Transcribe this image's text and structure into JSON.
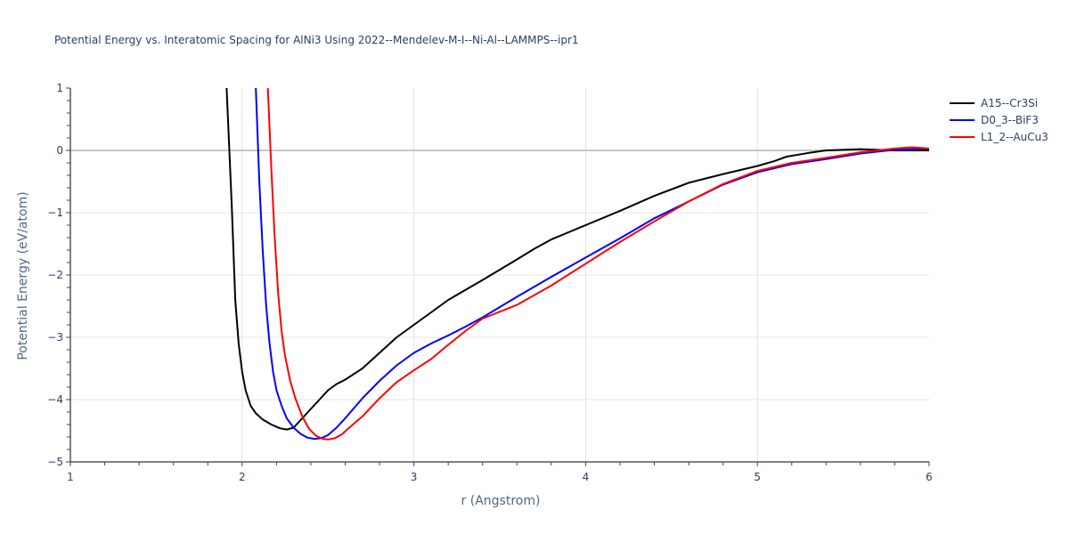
{
  "chart_data": {
    "type": "line",
    "title": "Potential Energy vs. Interatomic Spacing for AlNi3 Using 2022--Mendelev-M-I--Ni-Al--LAMMPS--ipr1",
    "xlabel": "r (Angstrom)",
    "ylabel": "Potential Energy (eV/atom)",
    "xlim": [
      1,
      6
    ],
    "ylim": [
      -5,
      1
    ],
    "x_ticks": [
      "1",
      "2",
      "3",
      "4",
      "5",
      "6"
    ],
    "y_ticks": [
      "1",
      "0",
      "−1",
      "−2",
      "−3",
      "−4",
      "−5"
    ],
    "grid": true,
    "legend_position": "top-right outside",
    "series": [
      {
        "name": "A15--Cr3Si",
        "color": "#000000",
        "x": [
          1.91,
          1.94,
          1.96,
          1.98,
          2.0,
          2.02,
          2.05,
          2.08,
          2.12,
          2.17,
          2.22,
          2.26,
          2.3,
          2.35,
          2.4,
          2.45,
          2.5,
          2.55,
          2.6,
          2.7,
          2.8,
          2.9,
          3.0,
          3.1,
          3.2,
          3.4,
          3.6,
          3.7,
          3.8,
          4.0,
          4.2,
          4.4,
          4.6,
          4.8,
          5.0,
          5.1,
          5.17,
          5.3,
          5.4,
          5.6,
          5.8,
          6.0
        ],
        "y": [
          1.0,
          -0.9,
          -2.4,
          -3.1,
          -3.55,
          -3.85,
          -4.1,
          -4.22,
          -4.32,
          -4.4,
          -4.46,
          -4.48,
          -4.45,
          -4.3,
          -4.15,
          -4.0,
          -3.85,
          -3.75,
          -3.68,
          -3.5,
          -3.25,
          -3.0,
          -2.8,
          -2.6,
          -2.4,
          -2.08,
          -1.75,
          -1.58,
          -1.43,
          -1.2,
          -0.97,
          -0.73,
          -0.52,
          -0.38,
          -0.25,
          -0.17,
          -0.1,
          -0.04,
          0.0,
          0.02,
          0.0,
          0.0
        ]
      },
      {
        "name": "D0_3--BiF3",
        "color": "#0000ff",
        "x": [
          2.08,
          2.1,
          2.12,
          2.14,
          2.16,
          2.18,
          2.2,
          2.23,
          2.26,
          2.3,
          2.34,
          2.38,
          2.42,
          2.46,
          2.5,
          2.55,
          2.6,
          2.7,
          2.8,
          2.9,
          3.0,
          3.1,
          3.2,
          3.3,
          3.4,
          3.6,
          3.8,
          4.0,
          4.2,
          4.4,
          4.6,
          4.8,
          5.0,
          5.2,
          5.4,
          5.6,
          5.8,
          6.0
        ],
        "y": [
          1.0,
          -0.5,
          -1.6,
          -2.5,
          -3.1,
          -3.55,
          -3.85,
          -4.1,
          -4.3,
          -4.45,
          -4.55,
          -4.61,
          -4.63,
          -4.62,
          -4.57,
          -4.45,
          -4.3,
          -3.98,
          -3.7,
          -3.45,
          -3.25,
          -3.1,
          -2.97,
          -2.83,
          -2.68,
          -2.35,
          -2.03,
          -1.72,
          -1.41,
          -1.09,
          -0.82,
          -0.55,
          -0.35,
          -0.22,
          -0.14,
          -0.05,
          0.01,
          0.03
        ]
      },
      {
        "name": "L1_2--AuCu3",
        "color": "#ff0000",
        "x": [
          2.15,
          2.17,
          2.19,
          2.21,
          2.23,
          2.25,
          2.28,
          2.31,
          2.35,
          2.39,
          2.43,
          2.47,
          2.5,
          2.54,
          2.58,
          2.62,
          2.7,
          2.8,
          2.9,
          3.0,
          3.1,
          3.2,
          3.3,
          3.4,
          3.6,
          3.8,
          4.0,
          4.2,
          4.4,
          4.6,
          4.8,
          5.0,
          5.2,
          5.4,
          5.6,
          5.8,
          5.9,
          6.0
        ],
        "y": [
          1.0,
          -0.3,
          -1.4,
          -2.3,
          -2.9,
          -3.3,
          -3.7,
          -3.98,
          -4.27,
          -4.47,
          -4.58,
          -4.63,
          -4.64,
          -4.62,
          -4.56,
          -4.46,
          -4.27,
          -3.98,
          -3.72,
          -3.53,
          -3.35,
          -3.12,
          -2.9,
          -2.7,
          -2.48,
          -2.17,
          -1.82,
          -1.47,
          -1.14,
          -0.82,
          -0.54,
          -0.33,
          -0.2,
          -0.12,
          -0.03,
          0.03,
          0.05,
          0.03
        ]
      }
    ]
  }
}
